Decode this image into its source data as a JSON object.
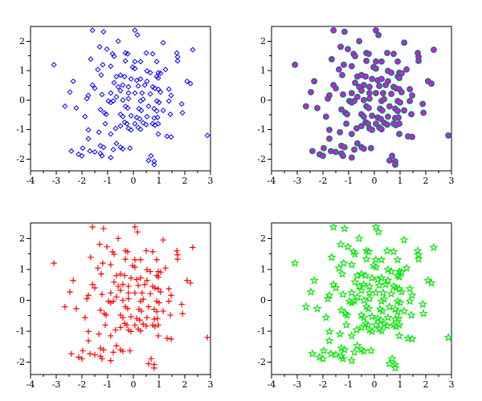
{
  "figure": {
    "background": "#ffffff"
  },
  "chart_data": {
    "type": "scatter",
    "layout": "2x2-grid",
    "grid": false,
    "title": "",
    "xlabel": "",
    "ylabel": "",
    "xlim": [
      -4,
      3
    ],
    "ylim": [
      -2.4,
      2.5
    ],
    "xticks_major": [
      -4,
      -3,
      -2,
      -1,
      0,
      1,
      2,
      3
    ],
    "yticks_major": [
      -2,
      -1,
      0,
      1,
      2
    ],
    "xtick_labels": [
      "-4",
      "-3",
      "-2",
      "-1",
      "0",
      "1",
      "2",
      "3"
    ],
    "ytick_labels": [
      "-2",
      "-1",
      "0",
      "1",
      "2"
    ],
    "minor_tick_step": 0.5,
    "axis_color": "#000000",
    "points_shared_by_all_subplots": true,
    "subplots": [
      {
        "position": "top-left",
        "marker": "diamond",
        "marker_style": "open",
        "color": "#0000ff",
        "fill": "none"
      },
      {
        "position": "top-right",
        "marker": "circle",
        "marker_style": "filled",
        "color": "#1e7373",
        "fill": "#ff00ff"
      },
      {
        "position": "bottom-left",
        "marker": "plus",
        "marker_style": "open",
        "color": "#ff0000",
        "fill": "none"
      },
      {
        "position": "bottom-right",
        "marker": "star",
        "marker_style": "open",
        "color": "#00e400",
        "fill": "none"
      }
    ],
    "points": [
      [
        -1.59,
        2.37
      ],
      [
        -1.16,
        2.32
      ],
      [
        -0.59,
        2.0
      ],
      [
        -1.31,
        1.81
      ],
      [
        -1.03,
        1.73
      ],
      [
        -0.81,
        1.57
      ],
      [
        -0.75,
        1.49
      ],
      [
        -1.66,
        1.39
      ],
      [
        -3.09,
        1.2
      ],
      [
        -1.19,
        1.2
      ],
      [
        -0.88,
        1.15
      ],
      [
        -1.38,
        1.04
      ],
      [
        -1.25,
        0.85
      ],
      [
        -0.66,
        0.8
      ],
      [
        -2.34,
        0.64
      ],
      [
        -0.75,
        0.59
      ],
      [
        -1.59,
        0.51
      ],
      [
        -0.59,
        0.45
      ],
      [
        -1.5,
        0.4
      ],
      [
        -2.47,
        0.27
      ],
      [
        -1.75,
        0.16
      ],
      [
        -1.22,
        0.19
      ],
      [
        -0.88,
        0.24
      ],
      [
        -0.66,
        0.11
      ],
      [
        0.06,
        2.37
      ],
      [
        0.16,
        2.21
      ],
      [
        1.16,
        1.95
      ],
      [
        -0.31,
        1.6
      ],
      [
        -0.22,
        1.57
      ],
      [
        0.5,
        1.6
      ],
      [
        0.75,
        1.57
      ],
      [
        1.69,
        1.6
      ],
      [
        1.72,
        1.47
      ],
      [
        2.31,
        1.71
      ],
      [
        -0.31,
        1.33
      ],
      [
        0.06,
        1.31
      ],
      [
        0.28,
        1.31
      ],
      [
        0.91,
        1.31
      ],
      [
        1.72,
        1.33
      ],
      [
        -0.03,
        1.12
      ],
      [
        0.06,
        1.07
      ],
      [
        0.53,
        0.99
      ],
      [
        0.66,
        0.93
      ],
      [
        0.97,
        0.93
      ],
      [
        1.06,
        0.91
      ],
      [
        1.25,
        1.04
      ],
      [
        -0.5,
        0.85
      ],
      [
        -0.34,
        0.8
      ],
      [
        -0.09,
        0.72
      ],
      [
        0.13,
        0.67
      ],
      [
        0.28,
        0.72
      ],
      [
        0.53,
        0.64
      ],
      [
        0.91,
        0.8
      ],
      [
        0.97,
        0.75
      ],
      [
        2.09,
        0.64
      ],
      [
        2.22,
        0.56
      ],
      [
        -0.41,
        0.51
      ],
      [
        -0.19,
        0.45
      ],
      [
        0.19,
        0.48
      ],
      [
        0.44,
        0.51
      ],
      [
        0.75,
        0.45
      ],
      [
        0.84,
        0.4
      ],
      [
        0.97,
        0.37
      ],
      [
        -0.19,
        0.24
      ],
      [
        0.06,
        0.24
      ],
      [
        0.34,
        0.24
      ],
      [
        0.66,
        0.21
      ],
      [
        1.06,
        0.27
      ],
      [
        1.38,
        0.37
      ],
      [
        1.47,
        0.16
      ],
      [
        -0.5,
        0.32
      ],
      [
        -1.81,
        0.05
      ],
      [
        -0.97,
        -0.03
      ],
      [
        -0.88,
        -0.08
      ],
      [
        -0.78,
        -0.03
      ],
      [
        -2.66,
        -0.21
      ],
      [
        -2.22,
        -0.27
      ],
      [
        -1.28,
        -0.32
      ],
      [
        -1.13,
        -0.43
      ],
      [
        -1.06,
        -0.48
      ],
      [
        -1.88,
        -0.56
      ],
      [
        -1.09,
        -0.8
      ],
      [
        -0.69,
        -0.96
      ],
      [
        -1.75,
        -1.01
      ],
      [
        -1.34,
        -1.09
      ],
      [
        -0.88,
        -1.15
      ],
      [
        -1.75,
        -1.31
      ],
      [
        -0.66,
        -1.47
      ],
      [
        -1.28,
        -1.55
      ],
      [
        -1.16,
        -1.6
      ],
      [
        -2.41,
        -1.73
      ],
      [
        -1.97,
        -1.63
      ],
      [
        -1.69,
        -1.73
      ],
      [
        -2.13,
        -1.84
      ],
      [
        -2.0,
        -1.89
      ],
      [
        -1.5,
        -1.76
      ],
      [
        -1.28,
        -1.81
      ],
      [
        -1.22,
        -1.89
      ],
      [
        -0.78,
        -1.68
      ],
      [
        -0.88,
        -1.95
      ],
      [
        -0.41,
        0.0
      ],
      [
        -0.19,
        0.05
      ],
      [
        0.28,
        -0.03
      ],
      [
        0.38,
        0.03
      ],
      [
        0.91,
        -0.03
      ],
      [
        1.0,
        -0.08
      ],
      [
        1.38,
        -0.03
      ],
      [
        1.88,
        -0.13
      ],
      [
        -0.31,
        -0.21
      ],
      [
        -0.22,
        -0.27
      ],
      [
        0.22,
        -0.29
      ],
      [
        0.31,
        -0.35
      ],
      [
        0.59,
        -0.21
      ],
      [
        0.81,
        -0.29
      ],
      [
        0.91,
        -0.37
      ],
      [
        1.16,
        -0.35
      ],
      [
        1.44,
        -0.48
      ],
      [
        1.91,
        -0.43
      ],
      [
        -0.5,
        -0.48
      ],
      [
        -0.41,
        -0.56
      ],
      [
        -0.09,
        -0.53
      ],
      [
        0.13,
        -0.59
      ],
      [
        0.25,
        -0.64
      ],
      [
        0.53,
        -0.56
      ],
      [
        0.81,
        -0.61
      ],
      [
        0.94,
        -0.59
      ],
      [
        -0.34,
        -0.75
      ],
      [
        -0.25,
        -0.8
      ],
      [
        0.06,
        -0.8
      ],
      [
        0.38,
        -0.77
      ],
      [
        0.5,
        -0.83
      ],
      [
        0.75,
        -0.8
      ],
      [
        0.84,
        -0.85
      ],
      [
        0.97,
        -0.8
      ],
      [
        -0.5,
        -0.88
      ],
      [
        -0.19,
        -0.96
      ],
      [
        -0.09,
        -1.01
      ],
      [
        0.19,
        -0.93
      ],
      [
        0.28,
        -0.99
      ],
      [
        0.97,
        -1.15
      ],
      [
        1.31,
        -1.23
      ],
      [
        1.47,
        -1.25
      ],
      [
        2.88,
        -1.2
      ],
      [
        -0.5,
        -1.6
      ],
      [
        -0.41,
        -1.65
      ],
      [
        -0.13,
        -1.63
      ],
      [
        0.69,
        -1.89
      ],
      [
        0.81,
        -2.08
      ],
      [
        0.59,
        -2.05
      ],
      [
        0.81,
        -2.19
      ]
    ]
  }
}
